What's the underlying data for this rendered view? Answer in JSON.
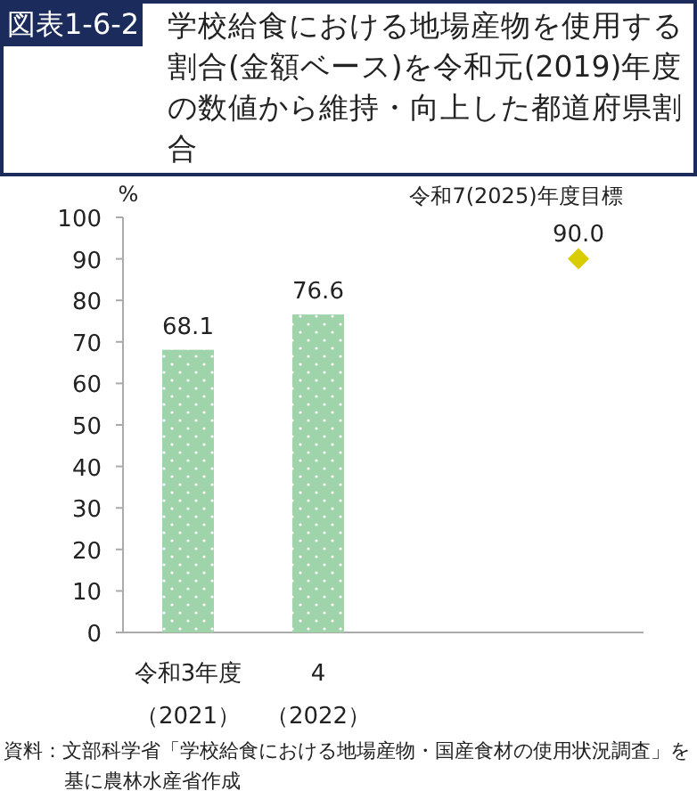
{
  "chart_data": {
    "type": "bar",
    "title": "学校給食における地場産物を使用する割合(金額ベース)を令和元(2019)年度の数値から維持・向上した都道府県割合",
    "subtitle": "図表1-6-2",
    "ylabel": "%",
    "categories": [
      "令和3年度（2021）",
      "4（2022）",
      null,
      "令和7(2025)年度目標"
    ],
    "series": [
      {
        "color": "#9fd3a9",
        "values": [
          68.1,
          76.6,
          null,
          null
        ],
        "value_labels": [
          "68.1",
          "76.6",
          null,
          null
        ]
      },
      {
        "type": "scatter",
        "color": "#d9cc00",
        "marker": "diamond",
        "x": [
          "令和7(2025)年度目標"
        ],
        "values": [
          90.0
        ],
        "value_labels": [
          "90.0"
        ]
      }
    ],
    "ylim": [
      0,
      100
    ],
    "yticks": [
      0,
      10,
      20,
      30,
      40,
      50,
      60,
      70,
      80,
      90,
      100
    ],
    "grid": false,
    "annotations": [
      "資料：文部科学省「学校給食における地場産物・国産食材の使用状況調査」を基に農林水産省作成"
    ]
  }
}
